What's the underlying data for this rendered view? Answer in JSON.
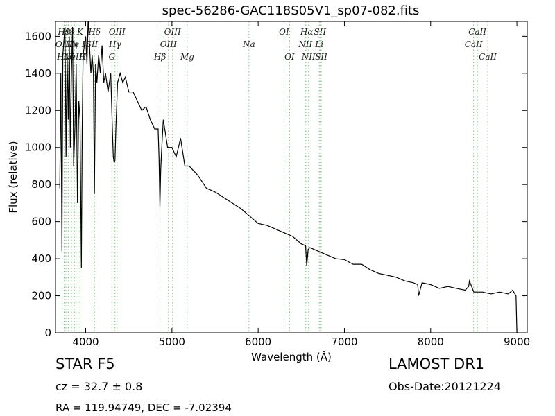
{
  "chart_data": {
    "type": "line",
    "title": "spec-56286-GAC118S05V1_sp07-082.fits",
    "xlabel": "Wavelength (Å)",
    "ylabel": "Flux (relative)",
    "xlim": [
      3650,
      9120
    ],
    "ylim": [
      0,
      1680
    ],
    "xticks": [
      4000,
      5000,
      6000,
      7000,
      8000,
      9000
    ],
    "yticks": [
      0,
      200,
      400,
      600,
      800,
      1000,
      1200,
      1400,
      1600
    ],
    "line_color": "#000000",
    "marker_color": "#7fbf7f",
    "series": [
      {
        "x": [
          3700,
          3712,
          3725,
          3735,
          3748,
          3760,
          3772,
          3785,
          3798,
          3810,
          3822,
          3835,
          3848,
          3860,
          3875,
          3890,
          3905,
          3920,
          3935,
          3950,
          3960,
          3970,
          3985,
          4000,
          4015,
          4030,
          4045,
          4060,
          4075,
          4090,
          4101,
          4115,
          4130,
          4150,
          4170,
          4190,
          4210,
          4230,
          4260,
          4290,
          4310,
          4320,
          4330,
          4340,
          4350,
          4370,
          4400,
          4430,
          4460,
          4500,
          4550,
          4600,
          4650,
          4700,
          4750,
          4800,
          4840,
          4850,
          4861,
          4870,
          4880,
          4900,
          4950,
          5000,
          5050,
          5100,
          5150,
          5200,
          5300,
          5400,
          5500,
          5600,
          5700,
          5800,
          5900,
          6000,
          6100,
          6200,
          6300,
          6400,
          6500,
          6550,
          6563,
          6580,
          6600,
          6700,
          6800,
          6900,
          7000,
          7100,
          7200,
          7300,
          7400,
          7500,
          7600,
          7700,
          7800,
          7850,
          7860,
          7900,
          8000,
          8100,
          8200,
          8300,
          8400,
          8440,
          8450,
          8500,
          8600,
          8700,
          8800,
          8900,
          8950,
          8990,
          9000
        ],
        "values": [
          780,
          1400,
          440,
          1500,
          1580,
          1650,
          950,
          1500,
          1150,
          1600,
          1000,
          1400,
          1650,
          900,
          1100,
          1450,
          700,
          1250,
          1150,
          350,
          1100,
          1500,
          1550,
          1600,
          1450,
          1700,
          1550,
          1400,
          1500,
          1400,
          750,
          1450,
          1350,
          1500,
          1400,
          1550,
          1350,
          1400,
          1300,
          1400,
          1100,
          950,
          920,
          930,
          1100,
          1350,
          1400,
          1350,
          1380,
          1300,
          1300,
          1250,
          1200,
          1220,
          1150,
          1100,
          1100,
          950,
          680,
          880,
          980,
          1150,
          1000,
          1000,
          950,
          1050,
          900,
          900,
          850,
          780,
          760,
          730,
          700,
          670,
          630,
          590,
          580,
          560,
          540,
          520,
          480,
          470,
          360,
          450,
          460,
          440,
          420,
          400,
          395,
          370,
          370,
          340,
          320,
          310,
          300,
          280,
          270,
          260,
          200,
          270,
          260,
          240,
          250,
          240,
          230,
          250,
          280,
          220,
          220,
          210,
          220,
          210,
          230,
          200,
          0
        ]
      }
    ],
    "line_markers": [
      {
        "wavelength": 3727,
        "label": "OII",
        "row": 2
      },
      {
        "wavelength": 3750,
        "label": "H9",
        "row": 1
      },
      {
        "wavelength": 3771,
        "label": "H10",
        "row": 3
      },
      {
        "wavelength": 3798,
        "label": "H8",
        "row": 1
      },
      {
        "wavelength": 3835,
        "label": "Hη",
        "row": 2
      },
      {
        "wavelength": 3869,
        "label": "NeIII",
        "row": 3
      },
      {
        "wavelength": 3889,
        "label": "He I",
        "row": 2
      },
      {
        "wavelength": 3934,
        "label": "K",
        "row": 1
      },
      {
        "wavelength": 3968,
        "label": "H",
        "row": 3
      },
      {
        "wavelength": 4072,
        "label": "SII",
        "row": 2
      },
      {
        "wavelength": 4102,
        "label": "Hδ",
        "row": 1
      },
      {
        "wavelength": 4304,
        "label": "G",
        "row": 3
      },
      {
        "wavelength": 4340,
        "label": "Hγ",
        "row": 2
      },
      {
        "wavelength": 4364,
        "label": "OIII",
        "row": 1
      },
      {
        "wavelength": 4861,
        "label": "Hβ",
        "row": 3
      },
      {
        "wavelength": 4959,
        "label": "OIII",
        "row": 2
      },
      {
        "wavelength": 5007,
        "label": "OIII",
        "row": 1
      },
      {
        "wavelength": 5177,
        "label": "Mg",
        "row": 3
      },
      {
        "wavelength": 5893,
        "label": "Na",
        "row": 2
      },
      {
        "wavelength": 6300,
        "label": "OI",
        "row": 1
      },
      {
        "wavelength": 6364,
        "label": "OI",
        "row": 3
      },
      {
        "wavelength": 6548,
        "label": "NII",
        "row": 2
      },
      {
        "wavelength": 6563,
        "label": "Hα",
        "row": 1
      },
      {
        "wavelength": 6584,
        "label": "NII",
        "row": 3
      },
      {
        "wavelength": 6708,
        "label": "Li",
        "row": 2
      },
      {
        "wavelength": 6717,
        "label": "SII",
        "row": 1
      },
      {
        "wavelength": 6731,
        "label": "SII",
        "row": 3
      },
      {
        "wavelength": 8498,
        "label": "CaII",
        "row": 2
      },
      {
        "wavelength": 8542,
        "label": "CaII",
        "row": 1
      },
      {
        "wavelength": 8662,
        "label": "CaII",
        "row": 3
      }
    ]
  },
  "info": {
    "object_class": "STAR   F5",
    "survey": "LAMOST DR1",
    "redshift": "cz = 32.7 ± 0.8",
    "obs_date": "Obs-Date:20121224",
    "coords": "RA = 119.94749, DEC = -7.02394"
  }
}
